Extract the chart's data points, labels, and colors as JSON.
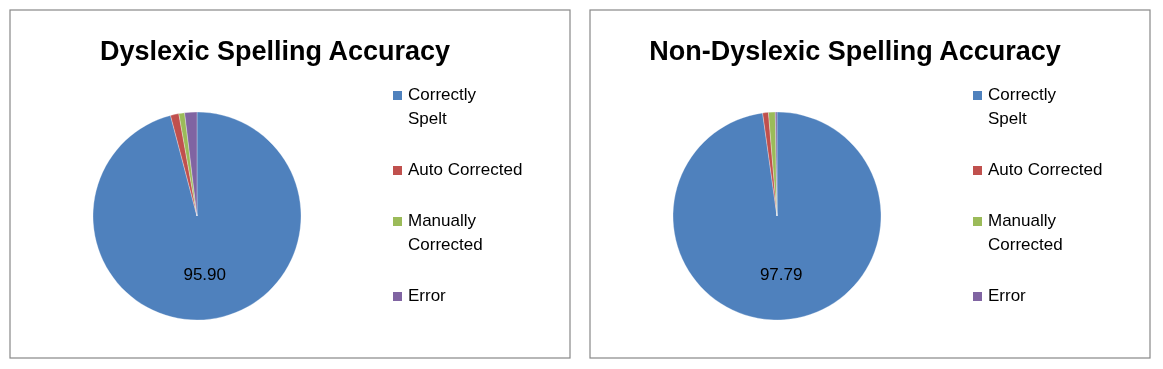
{
  "chart_data": [
    {
      "type": "pie",
      "title": "Dyslexic Spelling Accuracy",
      "categories": [
        "Correctly Spelt",
        "Auto Corrected",
        "Manually Corrected",
        "Error"
      ],
      "values": [
        95.9,
        1.3,
        0.9,
        1.9
      ],
      "value_labels": [
        "95.90",
        null,
        null,
        null
      ],
      "colors": [
        "#4f81bd",
        "#c0504d",
        "#9bbb59",
        "#8064a2"
      ],
      "legend": "right"
    },
    {
      "type": "pie",
      "title": "Non-Dyslexic Spelling Accuracy",
      "categories": [
        "Correctly Spelt",
        "Auto Corrected",
        "Manually Corrected",
        "Error"
      ],
      "values": [
        97.79,
        0.9,
        1.05,
        0.26
      ],
      "value_labels": [
        "97.79",
        null,
        null,
        null
      ],
      "colors": [
        "#4f81bd",
        "#c0504d",
        "#9bbb59",
        "#8064a2"
      ],
      "legend": "right"
    }
  ]
}
